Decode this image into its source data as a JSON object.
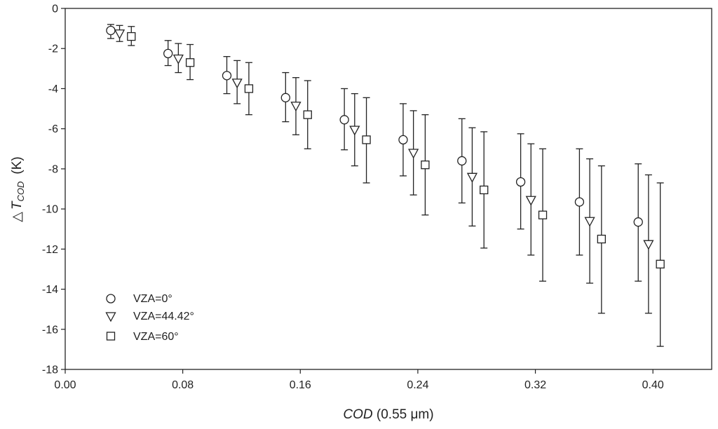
{
  "chart_data": {
    "type": "scatter",
    "title": "",
    "xlabel": {
      "italic": "COD",
      "plain": " (0.55 μm)"
    },
    "ylabel": {
      "delta": "△",
      "italic": "T",
      "sub": "COD",
      "unit": "(K)"
    },
    "xlim": [
      0.0,
      0.44
    ],
    "ylim": [
      -18,
      0
    ],
    "xticks": [
      0.0,
      0.08,
      0.16,
      0.24,
      0.32,
      0.4
    ],
    "xtick_labels": [
      "0.00",
      "0.08",
      "0.16",
      "0.24",
      "0.32",
      "0.40"
    ],
    "yticks": [
      0,
      -2,
      -4,
      -6,
      -8,
      -10,
      -12,
      -14,
      -16,
      -18
    ],
    "ytick_labels": [
      "0",
      "-2",
      "-4",
      "-6",
      "-8",
      "-10",
      "-12",
      "-14",
      "-16",
      "-18"
    ],
    "grid": false,
    "legend_position": "bottom-left",
    "series": [
      {
        "name": "VZA=0°",
        "marker": "circle",
        "points": [
          {
            "x": 0.031,
            "y": -1.1,
            "lo": -1.5,
            "hi": -0.8
          },
          {
            "x": 0.07,
            "y": -2.25,
            "lo": -2.85,
            "hi": -1.6
          },
          {
            "x": 0.11,
            "y": -3.35,
            "lo": -4.25,
            "hi": -2.4
          },
          {
            "x": 0.15,
            "y": -4.45,
            "lo": -5.65,
            "hi": -3.2
          },
          {
            "x": 0.19,
            "y": -5.55,
            "lo": -7.05,
            "hi": -4.0
          },
          {
            "x": 0.23,
            "y": -6.55,
            "lo": -8.35,
            "hi": -4.75
          },
          {
            "x": 0.27,
            "y": -7.6,
            "lo": -9.7,
            "hi": -5.5
          },
          {
            "x": 0.31,
            "y": -8.65,
            "lo": -11.0,
            "hi": -6.25
          },
          {
            "x": 0.35,
            "y": -9.65,
            "lo": -12.3,
            "hi": -7.0
          },
          {
            "x": 0.39,
            "y": -10.65,
            "lo": -13.6,
            "hi": -7.75
          }
        ]
      },
      {
        "name": "VZA=44.42°",
        "marker": "triangle-down",
        "points": [
          {
            "x": 0.037,
            "y": -1.25,
            "lo": -1.65,
            "hi": -0.85
          },
          {
            "x": 0.077,
            "y": -2.5,
            "lo": -3.2,
            "hi": -1.75
          },
          {
            "x": 0.117,
            "y": -3.7,
            "lo": -4.75,
            "hi": -2.6
          },
          {
            "x": 0.157,
            "y": -4.85,
            "lo": -6.3,
            "hi": -3.45
          },
          {
            "x": 0.197,
            "y": -6.05,
            "lo": -7.85,
            "hi": -4.25
          },
          {
            "x": 0.237,
            "y": -7.2,
            "lo": -9.3,
            "hi": -5.1
          },
          {
            "x": 0.277,
            "y": -8.4,
            "lo": -10.85,
            "hi": -5.95
          },
          {
            "x": 0.317,
            "y": -9.55,
            "lo": -12.3,
            "hi": -6.75
          },
          {
            "x": 0.357,
            "y": -10.6,
            "lo": -13.7,
            "hi": -7.5
          },
          {
            "x": 0.397,
            "y": -11.75,
            "lo": -15.2,
            "hi": -8.3
          }
        ]
      },
      {
        "name": "VZA=60°",
        "marker": "square",
        "points": [
          {
            "x": 0.045,
            "y": -1.4,
            "lo": -1.85,
            "hi": -0.9
          },
          {
            "x": 0.085,
            "y": -2.7,
            "lo": -3.55,
            "hi": -1.8
          },
          {
            "x": 0.125,
            "y": -4.0,
            "lo": -5.3,
            "hi": -2.7
          },
          {
            "x": 0.165,
            "y": -5.3,
            "lo": -7.0,
            "hi": -3.6
          },
          {
            "x": 0.205,
            "y": -6.55,
            "lo": -8.7,
            "hi": -4.45
          },
          {
            "x": 0.245,
            "y": -7.8,
            "lo": -10.3,
            "hi": -5.3
          },
          {
            "x": 0.285,
            "y": -9.05,
            "lo": -11.95,
            "hi": -6.15
          },
          {
            "x": 0.325,
            "y": -10.3,
            "lo": -13.6,
            "hi": -7.0
          },
          {
            "x": 0.365,
            "y": -11.5,
            "lo": -15.2,
            "hi": -7.85
          },
          {
            "x": 0.405,
            "y": -12.75,
            "lo": -16.85,
            "hi": -8.7
          }
        ]
      }
    ]
  }
}
